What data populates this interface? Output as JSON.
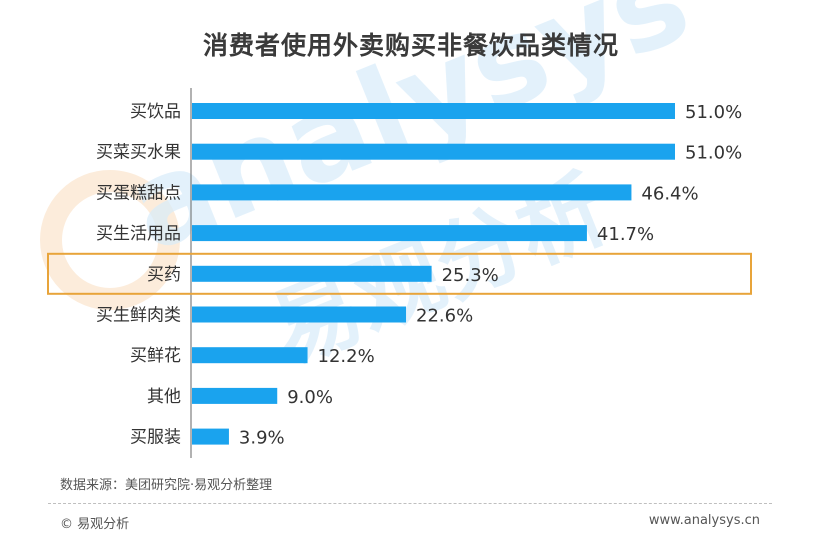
{
  "title": "消费者使用外卖购买非餐饮品类情况",
  "watermark": {
    "text_en": "analysys",
    "text_cn": "易观分析"
  },
  "chart_data": {
    "type": "bar",
    "orientation": "horizontal",
    "title": "消费者使用外卖购买非餐饮品类情况",
    "categories": [
      "买饮品",
      "买菜买水果",
      "买蛋糕甜点",
      "买生活用品",
      "买药",
      "买生鲜肉类",
      "买鲜花",
      "其他",
      "买服装"
    ],
    "values": [
      51.0,
      51.0,
      46.4,
      41.7,
      25.3,
      22.6,
      12.2,
      9.0,
      3.9
    ],
    "value_labels": [
      "51.0%",
      "51.0%",
      "46.4%",
      "41.7%",
      "25.3%",
      "22.6%",
      "12.2%",
      "9.0%",
      "3.9%"
    ],
    "unit": "%",
    "xlim": [
      0,
      51
    ],
    "highlight_category": "买药",
    "bar_color": "#1aa3ee",
    "highlight_color": "#e8a43a",
    "grid": false,
    "legend": "none"
  },
  "footer": {
    "source": "数据来源：美团研究院·易观分析整理",
    "copyright": "© 易观分析",
    "site": "www.analysys.cn"
  }
}
